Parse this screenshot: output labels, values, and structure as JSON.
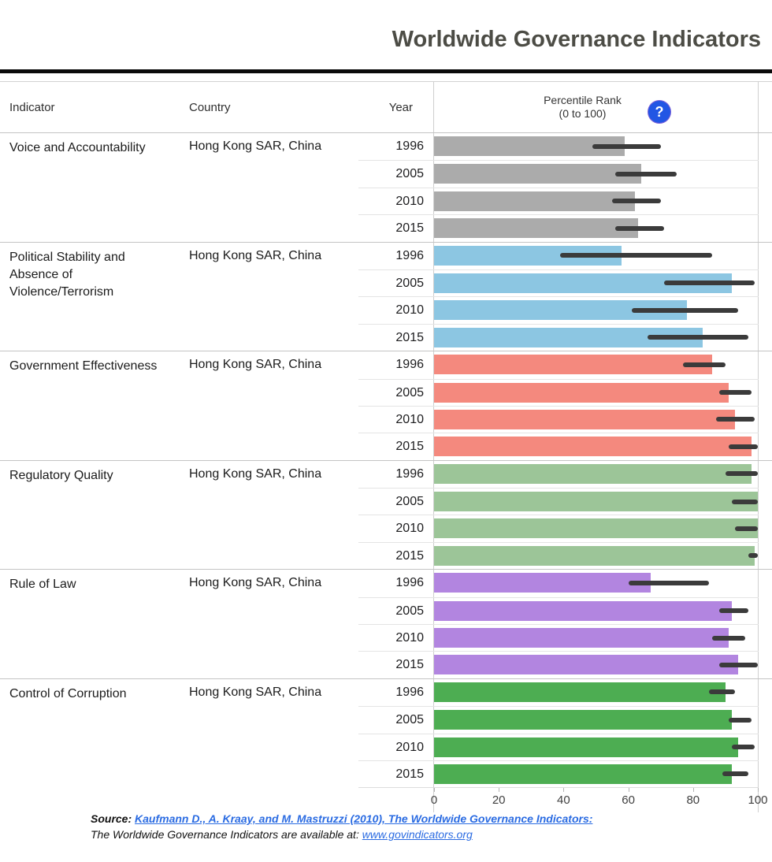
{
  "title": "Worldwide Governance Indicators",
  "header": {
    "indicator": "Indicator",
    "country": "Country",
    "year": "Year",
    "value_axis_line1": "Percentile Rank",
    "value_axis_line2": "(0 to 100)",
    "help_icon_glyph": "?"
  },
  "colors": {
    "title_text": "#4c4c45",
    "top_rule": "#0b0b0b",
    "confidence_interval": "#3b3b3b",
    "help_icon_bg": "#2256e4",
    "link": "#2a6be2",
    "voice_and_accountability": "#ababab",
    "political_stability": "#8cc6e2",
    "government_effectiveness": "#f4897e",
    "regulatory_quality": "#9cc598",
    "rule_of_law": "#b285e0",
    "control_of_corruption": "#4dad52"
  },
  "chart_data": {
    "type": "bar",
    "title": "Worldwide Governance Indicators",
    "xlabel": "Percentile Rank (0 to 100)",
    "xlim": [
      0,
      100
    ],
    "x_ticks": [
      0,
      20,
      40,
      60,
      80,
      100
    ],
    "grid": false,
    "country": "Hong Kong SAR, China",
    "years": [
      "1996",
      "2005",
      "2010",
      "2015"
    ],
    "note": "values are percentile ranks; ci_low/ci_high are the error-bar extents",
    "groups": [
      {
        "indicator": "Voice and Accountability",
        "display_name": "Voice and Accountability",
        "color": "#ababab",
        "bars": [
          {
            "year": "1996",
            "value": 59,
            "ci_low": 49,
            "ci_high": 70
          },
          {
            "year": "2005",
            "value": 64,
            "ci_low": 56,
            "ci_high": 75
          },
          {
            "year": "2010",
            "value": 62,
            "ci_low": 55,
            "ci_high": 70
          },
          {
            "year": "2015",
            "value": 63,
            "ci_low": 56,
            "ci_high": 71
          }
        ]
      },
      {
        "indicator": "Political Stability and Absence of Violence/Terrorism",
        "display_name": "Political Stability and\nAbsence of\nViolence/Terrorism",
        "color": "#8cc6e2",
        "bars": [
          {
            "year": "1996",
            "value": 58,
            "ci_low": 39,
            "ci_high": 86
          },
          {
            "year": "2005",
            "value": 92,
            "ci_low": 71,
            "ci_high": 99
          },
          {
            "year": "2010",
            "value": 78,
            "ci_low": 61,
            "ci_high": 94
          },
          {
            "year": "2015",
            "value": 83,
            "ci_low": 66,
            "ci_high": 97
          }
        ]
      },
      {
        "indicator": "Government Effectiveness",
        "display_name": "Government Effectiveness",
        "color": "#f4897e",
        "bars": [
          {
            "year": "1996",
            "value": 86,
            "ci_low": 77,
            "ci_high": 90
          },
          {
            "year": "2005",
            "value": 91,
            "ci_low": 88,
            "ci_high": 98
          },
          {
            "year": "2010",
            "value": 93,
            "ci_low": 87,
            "ci_high": 99
          },
          {
            "year": "2015",
            "value": 98,
            "ci_low": 91,
            "ci_high": 100
          }
        ]
      },
      {
        "indicator": "Regulatory Quality",
        "display_name": "Regulatory Quality",
        "color": "#9cc598",
        "bars": [
          {
            "year": "1996",
            "value": 98,
            "ci_low": 90,
            "ci_high": 100
          },
          {
            "year": "2005",
            "value": 100,
            "ci_low": 92,
            "ci_high": 100
          },
          {
            "year": "2010",
            "value": 100,
            "ci_low": 93,
            "ci_high": 100
          },
          {
            "year": "2015",
            "value": 99,
            "ci_low": 97,
            "ci_high": 100
          }
        ]
      },
      {
        "indicator": "Rule of Law",
        "display_name": "Rule of Law",
        "color": "#b285e0",
        "bars": [
          {
            "year": "1996",
            "value": 67,
            "ci_low": 60,
            "ci_high": 85
          },
          {
            "year": "2005",
            "value": 92,
            "ci_low": 88,
            "ci_high": 97
          },
          {
            "year": "2010",
            "value": 91,
            "ci_low": 86,
            "ci_high": 96
          },
          {
            "year": "2015",
            "value": 94,
            "ci_low": 88,
            "ci_high": 100
          }
        ]
      },
      {
        "indicator": "Control of Corruption",
        "display_name": "Control of Corruption",
        "color": "#4dad52",
        "bars": [
          {
            "year": "1996",
            "value": 90,
            "ci_low": 85,
            "ci_high": 93
          },
          {
            "year": "2005",
            "value": 92,
            "ci_low": 91,
            "ci_high": 98
          },
          {
            "year": "2010",
            "value": 94,
            "ci_low": 92,
            "ci_high": 99
          },
          {
            "year": "2015",
            "value": 92,
            "ci_low": 89,
            "ci_high": 97
          }
        ]
      }
    ]
  },
  "footer": {
    "source_label": "Source:",
    "source_link": "Kaufmann D., A. Kraay, and M. Mastruzzi (2010), The Worldwide Governance Indicators:",
    "availability_text": "The Worldwide Governance Indicators are available at: ",
    "availability_link": "www.govindicators.org"
  }
}
